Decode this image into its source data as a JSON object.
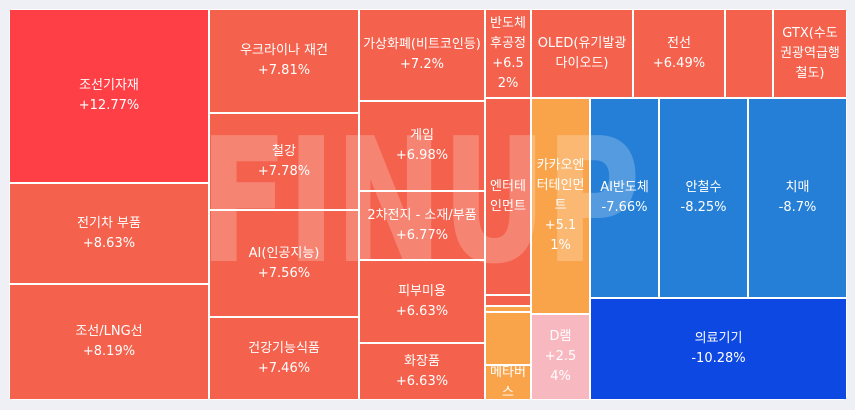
{
  "chart_data": {
    "type": "treemap",
    "watermark": "FINUP",
    "items": [
      {
        "name": "조선기자재",
        "change": "+12.77%",
        "color": "#fe3f46"
      },
      {
        "name": "전기차 부품",
        "change": "+8.63%",
        "color": "#f4614c"
      },
      {
        "name": "조선/LNG선",
        "change": "+8.19%",
        "color": "#f4614c"
      },
      {
        "name": "우크라이나 재건",
        "change": "+7.81%",
        "color": "#f4614c"
      },
      {
        "name": "철강",
        "change": "+7.78%",
        "color": "#f4614c"
      },
      {
        "name": "AI(인공지능)",
        "change": "+7.56%",
        "color": "#f4614c"
      },
      {
        "name": "건강기능식품",
        "change": "+7.46%",
        "color": "#f4614c"
      },
      {
        "name": "가상화폐(비트코인등)",
        "change": "+7.2%",
        "color": "#f4614c"
      },
      {
        "name": "게임",
        "change": "+6.98%",
        "color": "#f4614c"
      },
      {
        "name": "2차전지 - 소재/부품",
        "change": "+6.77%",
        "color": "#f4614c"
      },
      {
        "name": "피부미용",
        "change": "+6.63%",
        "color": "#f4614c"
      },
      {
        "name": "화장품",
        "change": "+6.63%",
        "color": "#f4614c"
      },
      {
        "name": "반도체 후공정",
        "change": "+6.52%",
        "color": "#f4614c"
      },
      {
        "name": "OLED(유기발광다이오드)",
        "change": "",
        "color": "#f4614c"
      },
      {
        "name": "전선",
        "change": "+6.49%",
        "color": "#f4614c"
      },
      {
        "name": "",
        "change": "",
        "color": "#f4614c"
      },
      {
        "name": "GTX(수도권광역급행철도)",
        "change": "",
        "color": "#f4614c"
      },
      {
        "name": "엔터테인먼트",
        "change": "",
        "color": "#f4614c"
      },
      {
        "name": "",
        "change": "",
        "color": "#f4614c"
      },
      {
        "name": "",
        "change": "",
        "color": "#f9a44a"
      },
      {
        "name": "",
        "change": "",
        "color": "#f9a44a"
      },
      {
        "name": "카카오엔터테인먼트",
        "change": "+5.11%",
        "color": "#f9a44a"
      },
      {
        "name": "메타버스",
        "change": "",
        "color": "#f9a44a"
      },
      {
        "name": "",
        "change": "",
        "color": "#f9a44a"
      },
      {
        "name": "D램",
        "change": "+2.54%",
        "color": "#f7b8c0"
      },
      {
        "name": "AI반도체",
        "change": "-7.66%",
        "color": "#257fd6"
      },
      {
        "name": "안철수",
        "change": "-8.25%",
        "color": "#257fd6"
      },
      {
        "name": "치매",
        "change": "-8.7%",
        "color": "#257fd6"
      },
      {
        "name": "의료기기",
        "change": "-10.28%",
        "color": "#0d48e3"
      }
    ]
  }
}
